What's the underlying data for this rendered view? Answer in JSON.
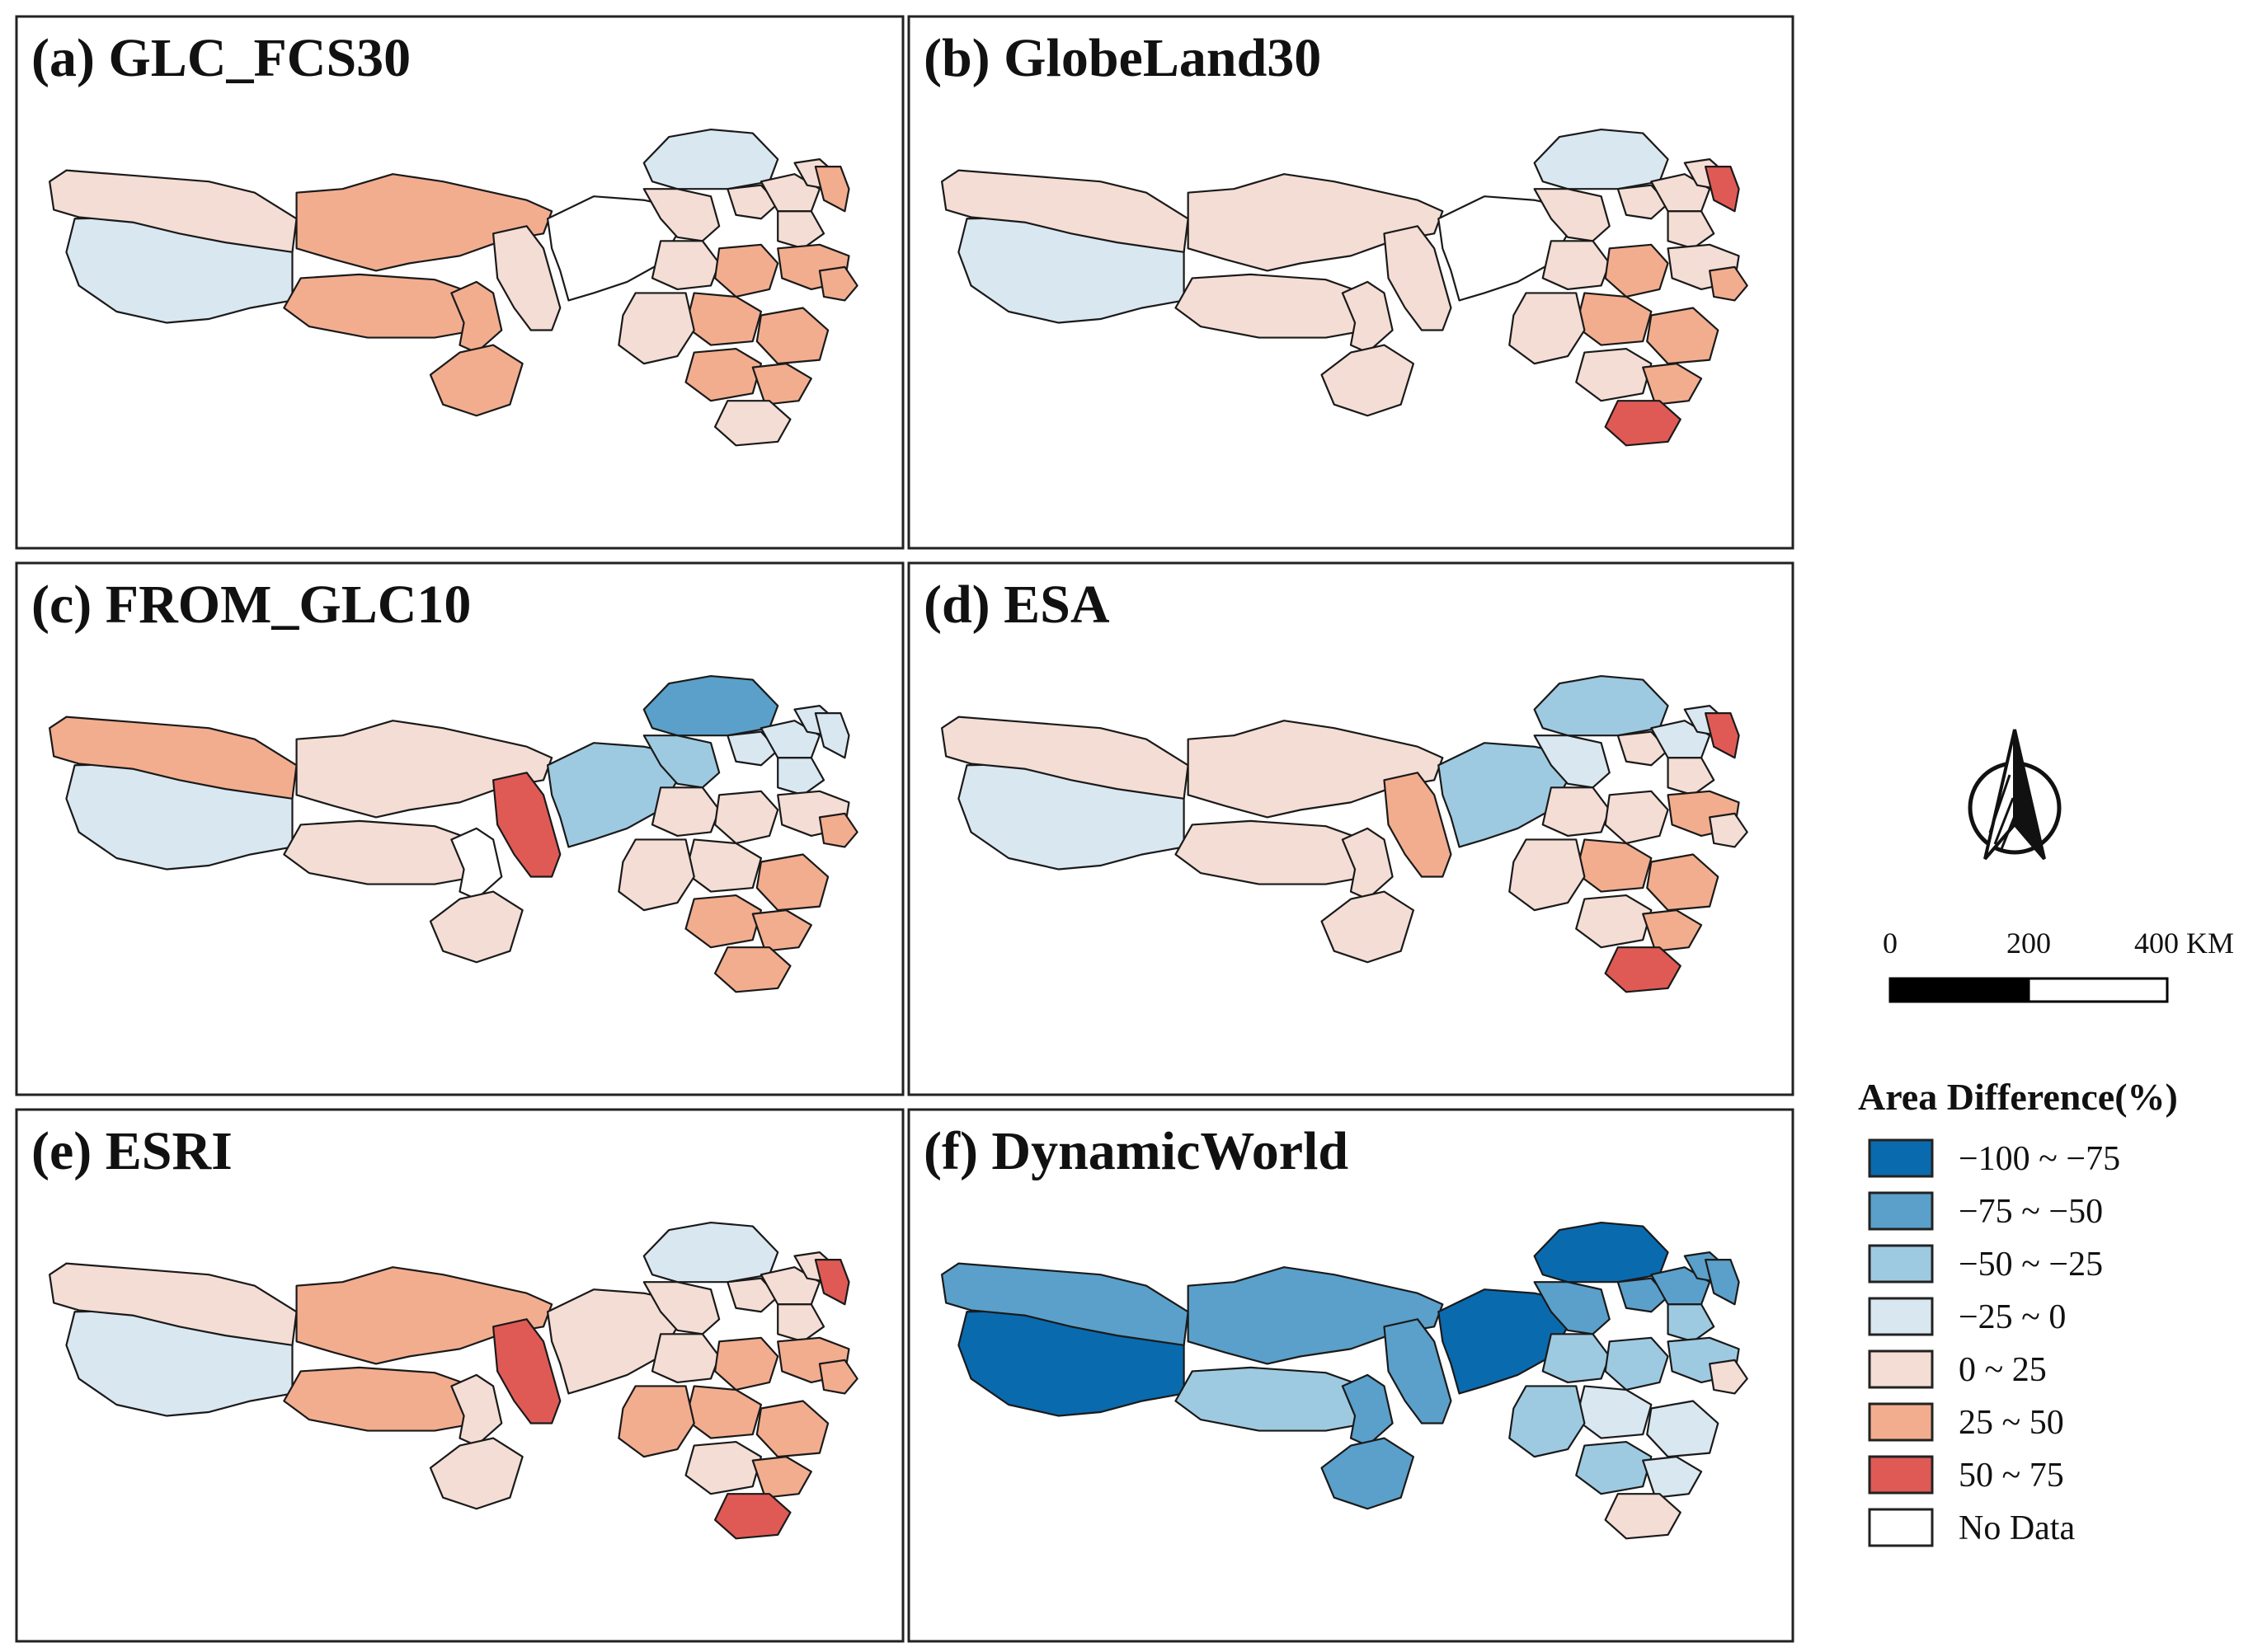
{
  "panels": [
    {
      "id": "a",
      "title": "(a) GLC_FCS30",
      "classes": [
        -1,
        1,
        2,
        2,
        2,
        2,
        1,
        0,
        -1,
        1,
        1,
        1,
        1,
        1,
        2,
        1,
        2,
        2,
        2,
        1,
        2,
        2,
        2,
        1,
        2
      ]
    },
    {
      "id": "b",
      "title": "(b) GlobeLand30",
      "classes": [
        -1,
        1,
        1,
        1,
        1,
        1,
        1,
        0,
        -1,
        1,
        1,
        1,
        1,
        1,
        3,
        1,
        2,
        1,
        2,
        1,
        2,
        1,
        2,
        3,
        2
      ]
    },
    {
      "id": "c",
      "title": "(c) FROM_GLC10",
      "classes": [
        -1,
        2,
        1,
        1,
        0,
        1,
        3,
        -2,
        -3,
        -2,
        -1,
        -1,
        -1,
        -1,
        -1,
        1,
        1,
        1,
        1,
        1,
        2,
        2,
        2,
        2,
        2
      ]
    },
    {
      "id": "d",
      "title": "(d) ESA",
      "classes": [
        -1,
        1,
        1,
        1,
        1,
        1,
        2,
        -2,
        -2,
        -1,
        1,
        -1,
        1,
        -1,
        3,
        1,
        1,
        2,
        2,
        1,
        2,
        1,
        2,
        3,
        1
      ]
    },
    {
      "id": "e",
      "title": "(e) ESRI",
      "classes": [
        -1,
        1,
        2,
        2,
        1,
        1,
        3,
        1,
        -1,
        1,
        1,
        1,
        1,
        1,
        3,
        1,
        2,
        2,
        2,
        2,
        2,
        1,
        2,
        3,
        2
      ]
    },
    {
      "id": "f",
      "title": "(f) DynamicWorld",
      "classes": [
        -4,
        -3,
        -3,
        -2,
        -3,
        -3,
        -3,
        -4,
        -4,
        -3,
        -3,
        -3,
        -2,
        -3,
        -3,
        -2,
        -2,
        -2,
        -1,
        -2,
        -1,
        -2,
        -1,
        1,
        1
      ]
    }
  ],
  "no_data_regions": [
    0
  ],
  "legend": {
    "title": "Area Difference(%)",
    "items": [
      {
        "label": "−100 ~ −75",
        "class": -4,
        "color": "#0a6aae"
      },
      {
        "label": "−75 ~ −50",
        "class": -3,
        "color": "#5aa0ca"
      },
      {
        "label": "−50 ~ −25",
        "class": -2,
        "color": "#9ecae1"
      },
      {
        "label": "−25 ~ 0",
        "class": -1,
        "color": "#d9e7f1"
      },
      {
        "label": "0 ~ 25",
        "class": 1,
        "color": "#f4ddd4"
      },
      {
        "label": "25 ~ 50",
        "class": 2,
        "color": "#f2ad8f"
      },
      {
        "label": "50 ~ 75",
        "class": 3,
        "color": "#e05a55"
      },
      {
        "label": "No Data",
        "class": 0,
        "color": "#ffffff"
      }
    ]
  },
  "scale_bar": {
    "labels": [
      "0",
      "200",
      "400 KM"
    ]
  },
  "north_arrow": {
    "icon": "north-arrow-icon"
  }
}
